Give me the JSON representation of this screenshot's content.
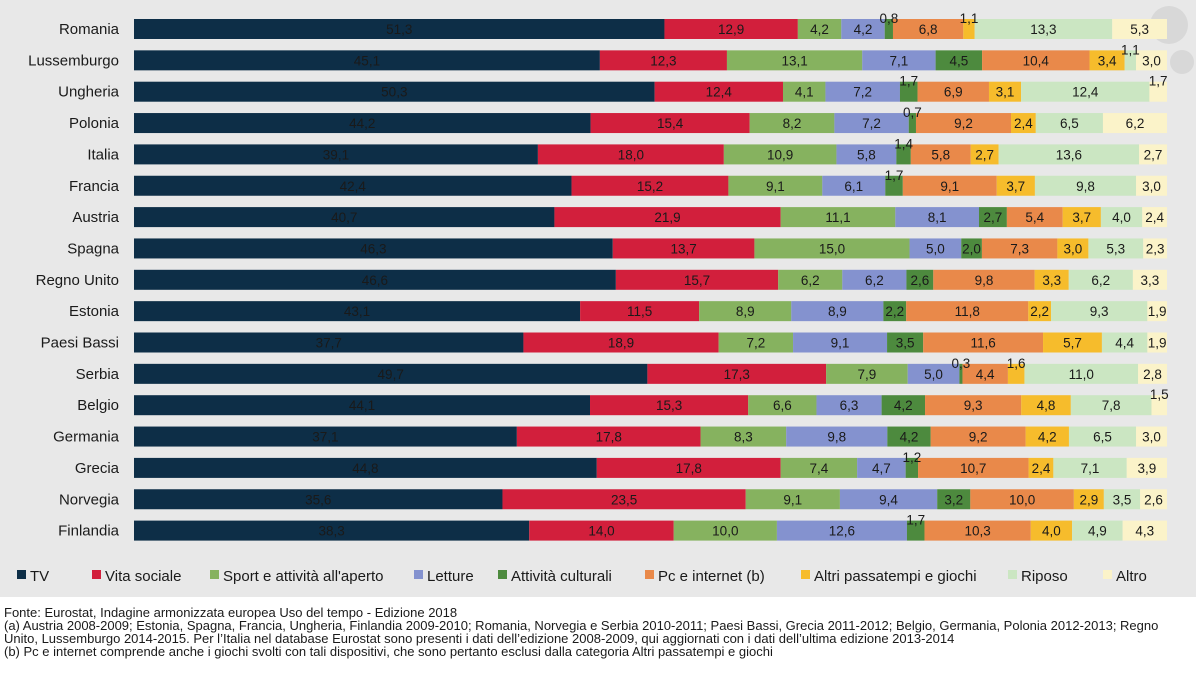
{
  "chart_data": {
    "type": "bar",
    "orientation": "horizontal",
    "stacked": true,
    "normalized_to_percent": true,
    "categories": [
      "Romania",
      "Lussemburgo",
      "Ungheria",
      "Polonia",
      "Italia",
      "Francia",
      "Austria",
      "Spagna",
      "Regno Unito",
      "Estonia",
      "Paesi Bassi",
      "Serbia",
      "Belgio",
      "Germania",
      "Grecia",
      "Norvegia",
      "Finlandia"
    ],
    "series": [
      {
        "name": "TV",
        "color": "#0d2e47",
        "values": [
          51.3,
          45.1,
          50.3,
          44.2,
          39.1,
          42.4,
          40.7,
          46.3,
          46.6,
          43.1,
          37.7,
          49.7,
          44.1,
          37.1,
          44.8,
          35.6,
          38.3
        ]
      },
      {
        "name": "Vita sociale",
        "color": "#d21f3c",
        "values": [
          12.9,
          12.3,
          12.4,
          15.4,
          18.0,
          15.2,
          21.9,
          13.7,
          15.7,
          11.5,
          18.9,
          17.3,
          15.3,
          17.8,
          17.8,
          23.5,
          14.0
        ]
      },
      {
        "name": "Sport e attività all'aperto",
        "color": "#86b25f",
        "values": [
          4.2,
          13.1,
          4.1,
          8.2,
          10.9,
          9.1,
          11.1,
          15.0,
          6.2,
          8.9,
          7.2,
          7.9,
          6.6,
          8.3,
          7.4,
          9.1,
          10.0
        ]
      },
      {
        "name": "Letture",
        "color": "#8492cf",
        "values": [
          4.2,
          7.1,
          7.2,
          7.2,
          5.8,
          6.1,
          8.1,
          5.0,
          6.2,
          8.9,
          9.1,
          5.0,
          6.3,
          9.8,
          4.7,
          9.4,
          12.6
        ]
      },
      {
        "name": "Attività culturali",
        "color": "#4d8a3e",
        "values": [
          0.8,
          4.5,
          1.7,
          0.7,
          1.4,
          1.7,
          2.7,
          2.0,
          2.6,
          2.2,
          3.5,
          0.3,
          4.2,
          4.2,
          1.2,
          3.2,
          1.7
        ]
      },
      {
        "name": "Pc e internet (b)",
        "color": "#e9894a",
        "values": [
          6.8,
          10.4,
          6.9,
          9.2,
          5.8,
          9.1,
          5.4,
          7.3,
          9.8,
          11.8,
          11.6,
          4.4,
          9.3,
          9.2,
          10.7,
          10.0,
          10.3
        ]
      },
      {
        "name": "Altri passatempi e giochi",
        "color": "#f6bc2c",
        "values": [
          1.1,
          3.4,
          3.1,
          2.4,
          2.7,
          3.7,
          3.7,
          3.0,
          3.3,
          2.2,
          5.7,
          1.6,
          4.8,
          4.2,
          2.4,
          2.9,
          4.0
        ]
      },
      {
        "name": "Riposo",
        "color": "#cbe6c2",
        "values": [
          13.3,
          1.1,
          12.4,
          6.5,
          13.6,
          9.8,
          4.0,
          5.3,
          6.2,
          9.3,
          4.4,
          11.0,
          7.8,
          6.5,
          7.1,
          3.5,
          4.9
        ]
      },
      {
        "name": "Altro",
        "color": "#fbf3c9",
        "values": [
          5.3,
          3.0,
          1.7,
          6.2,
          2.7,
          3.0,
          2.4,
          2.3,
          3.3,
          1.9,
          1.9,
          2.8,
          1.5,
          3.0,
          3.9,
          2.6,
          4.3
        ]
      }
    ],
    "labels": [
      [
        "51,3",
        "12,9",
        "4,2",
        "4,2",
        "0,8",
        "6,8",
        "1,1",
        "13,3",
        "5,3"
      ],
      [
        "45,1",
        "12,3",
        "13,1",
        "7,1",
        "4,5",
        "10,4",
        "3,4",
        "1,1",
        "3,0"
      ],
      [
        "50,3",
        "12,4",
        "4,1",
        "7,2",
        "1,7",
        "6,9",
        "3,1",
        "12,4",
        "1,7"
      ],
      [
        "44,2",
        "15,4",
        "8,2",
        "7,2",
        "0,7",
        "9,2",
        "2,4",
        "6,5",
        "6,2"
      ],
      [
        "39,1",
        "18,0",
        "10,9",
        "5,8",
        "1,4",
        "5,8",
        "2,7",
        "13,6",
        "2,7"
      ],
      [
        "42,4",
        "15,2",
        "9,1",
        "6,1",
        "1,7",
        "9,1",
        "3,7",
        "9,8",
        "3,0"
      ],
      [
        "40,7",
        "21,9",
        "11,1",
        "8,1",
        "2,7",
        "5,4",
        "3,7",
        "4,0",
        "2,4"
      ],
      [
        "46,3",
        "13,7",
        "15,0",
        "5,0",
        "2,0",
        "7,3",
        "3,0",
        "5,3",
        "2,3"
      ],
      [
        "46,6",
        "15,7",
        "6,2",
        "6,2",
        "2,6",
        "9,8",
        "3,3",
        "6,2",
        "3,3"
      ],
      [
        "43,1",
        "11,5",
        "8,9",
        "8,9",
        "2,2",
        "11,8",
        "2,2",
        "9,3",
        "1,9"
      ],
      [
        "37,7",
        "18,9",
        "7,2",
        "9,1",
        "3,5",
        "11,6",
        "5,7",
        "4,4",
        "1,9"
      ],
      [
        "49,7",
        "17,3",
        "7,9",
        "5,0",
        "0,3",
        "4,4",
        "1,6",
        "11,0",
        "2,8"
      ],
      [
        "44,1",
        "15,3",
        "6,6",
        "6,3",
        "4,2",
        "9,3",
        "4,8",
        "7,8",
        "1,5"
      ],
      [
        "37,1",
        "17,8",
        "8,3",
        "9,8",
        "4,2",
        "9,2",
        "4,2",
        "6,5",
        "3,0"
      ],
      [
        "44,8",
        "17,8",
        "7,4",
        "4,7",
        "1,2",
        "10,7",
        "2,4",
        "7,1",
        "3,9"
      ],
      [
        "35,6",
        "23,5",
        "9,1",
        "9,4",
        "3,2",
        "10,0",
        "2,9",
        "3,5",
        "2,6"
      ],
      [
        "38,3",
        "14,0",
        "10,0",
        "12,6",
        "1,7",
        "10,3",
        "4,0",
        "4,9",
        "4,3"
      ]
    ],
    "legend_position": "bottom",
    "grid": false,
    "title": "",
    "xlabel": "",
    "ylabel": ""
  },
  "footnotes": {
    "source": "Fonte: Eurostat, Indagine armonizzata europea Uso del tempo - Edizione 2018",
    "note_a": "(a) Austria 2008-2009; Estonia, Spagna, Francia, Ungheria, Finlandia 2009-2010; Romania, Norvegia e Serbia 2010-2011; Paesi Bassi, Grecia 2011-2012; Belgio, Germania, Polonia 2012-2013; Regno Unito, Lussemburgo 2014-2015. Per l’Italia nel database Eurostat sono presenti i dati dell’edizione 2008-2009, qui aggiornati con i dati dell’ultima edizione 2013-2014",
    "note_b": "(b) Pc e internet comprende anche i giochi svolti con tali dispositivi, che sono pertanto esclusi dalla categoria Altri passatempi e giochi"
  }
}
